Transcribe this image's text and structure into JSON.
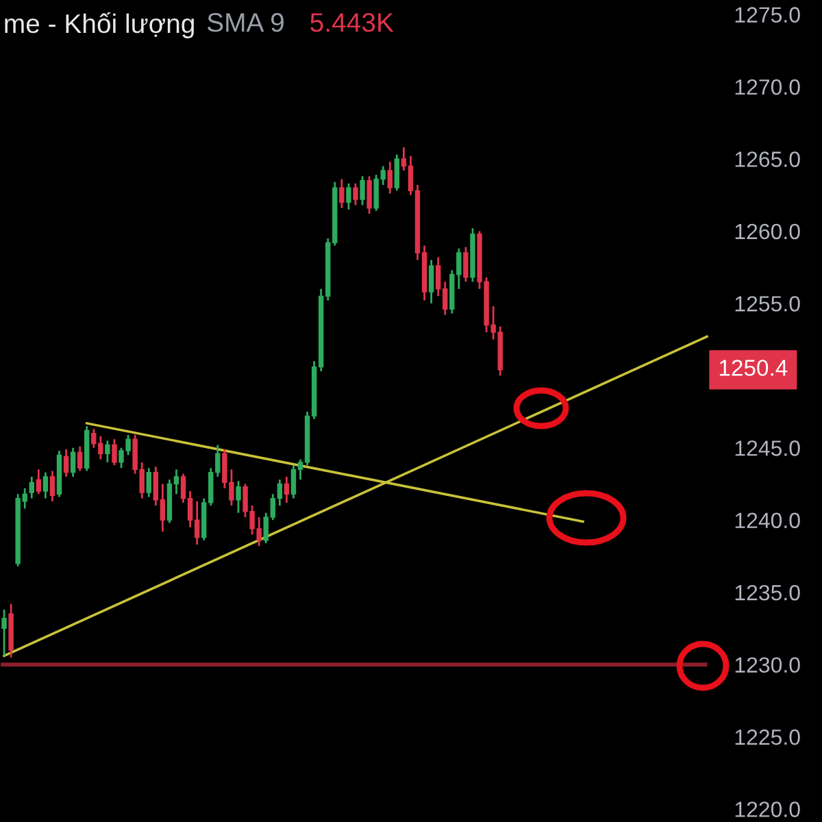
{
  "chart_data": {
    "type": "candlestick",
    "title": "me - Khối lượng",
    "subtitle": "SMA 9",
    "annotations": [
      "5.443K",
      "1250.4"
    ],
    "categories": [
      null,
      null,
      null,
      null,
      null,
      null,
      null,
      null,
      null,
      null,
      null,
      null,
      null,
      null,
      null,
      null,
      null,
      null,
      null,
      null,
      null,
      null,
      null,
      null,
      null,
      null,
      null,
      null,
      null,
      null,
      null,
      null,
      null,
      null,
      null,
      null,
      null,
      null,
      null,
      null,
      null,
      null,
      null,
      null,
      null,
      null,
      null,
      null,
      null,
      null,
      null,
      null,
      null,
      null,
      null,
      null,
      null,
      null,
      null,
      null,
      null,
      null,
      null,
      null,
      null,
      null,
      null,
      null,
      null,
      null,
      null,
      null,
      null,
      null,
      null,
      null,
      null,
      null,
      null,
      null,
      null,
      null,
      null,
      null,
      null,
      null,
      null,
      null,
      null,
      null,
      null,
      null,
      null,
      null,
      null,
      null,
      null,
      null,
      null,
      null,
      null,
      null,
      null
    ],
    "ohlc": [
      [
        1232.5,
        1233.8,
        1230.6,
        1233.2
      ],
      [
        1233.5,
        1234.2,
        1230.5,
        1231.0
      ],
      [
        1237.0,
        1241.8,
        1236.8,
        1241.5
      ],
      [
        1241.3,
        1242.2,
        1240.8,
        1241.8
      ],
      [
        1241.9,
        1243.0,
        1241.5,
        1242.6
      ],
      [
        1242.8,
        1243.5,
        1241.8,
        1242.0
      ],
      [
        1242.0,
        1243.3,
        1241.5,
        1243.0
      ],
      [
        1243.0,
        1243.4,
        1241.3,
        1241.7
      ],
      [
        1241.8,
        1244.8,
        1241.6,
        1244.5
      ],
      [
        1244.4,
        1244.9,
        1243.0,
        1243.3
      ],
      [
        1243.3,
        1245.0,
        1243.0,
        1244.7
      ],
      [
        1244.7,
        1245.1,
        1243.4,
        1243.6
      ],
      [
        1243.6,
        1246.5,
        1243.4,
        1246.2
      ],
      [
        1246.0,
        1246.3,
        1245.0,
        1245.3
      ],
      [
        1245.3,
        1245.8,
        1244.2,
        1244.6
      ],
      [
        1244.6,
        1245.5,
        1244.0,
        1245.2
      ],
      [
        1245.2,
        1245.6,
        1243.8,
        1244.0
      ],
      [
        1244.0,
        1245.0,
        1243.6,
        1244.8
      ],
      [
        1244.8,
        1245.9,
        1244.5,
        1245.6
      ],
      [
        1245.6,
        1245.9,
        1243.2,
        1243.5
      ],
      [
        1243.5,
        1244.0,
        1241.5,
        1241.9
      ],
      [
        1241.9,
        1243.6,
        1241.6,
        1243.3
      ],
      [
        1243.3,
        1243.7,
        1241.0,
        1241.4
      ],
      [
        1241.4,
        1242.5,
        1239.2,
        1240.0
      ],
      [
        1240.0,
        1242.8,
        1239.8,
        1242.5
      ],
      [
        1242.5,
        1243.5,
        1241.8,
        1243.0
      ],
      [
        1243.0,
        1243.2,
        1241.2,
        1241.5
      ],
      [
        1241.5,
        1242.0,
        1239.5,
        1240.0
      ],
      [
        1240.0,
        1241.3,
        1238.3,
        1238.8
      ],
      [
        1238.8,
        1241.5,
        1238.6,
        1241.2
      ],
      [
        1241.2,
        1243.6,
        1241.0,
        1243.3
      ],
      [
        1243.3,
        1245.2,
        1243.0,
        1244.6
      ],
      [
        1244.6,
        1244.9,
        1242.2,
        1242.6
      ],
      [
        1242.6,
        1243.5,
        1241.0,
        1241.4
      ],
      [
        1241.4,
        1242.7,
        1240.5,
        1242.3
      ],
      [
        1242.3,
        1242.5,
        1240.2,
        1240.6
      ],
      [
        1240.6,
        1241.0,
        1239.0,
        1239.4
      ],
      [
        1239.4,
        1240.2,
        1238.2,
        1238.6
      ],
      [
        1238.6,
        1240.5,
        1238.4,
        1240.2
      ],
      [
        1240.2,
        1241.8,
        1240.0,
        1241.5
      ],
      [
        1241.5,
        1242.8,
        1241.0,
        1242.5
      ],
      [
        1242.5,
        1243.0,
        1241.2,
        1241.8
      ],
      [
        1241.8,
        1243.8,
        1241.5,
        1243.5
      ],
      [
        1243.5,
        1244.2,
        1242.8,
        1244.0
      ],
      [
        1244.0,
        1247.5,
        1243.8,
        1247.2
      ],
      [
        1247.2,
        1251.0,
        1247.0,
        1250.6
      ],
      [
        1250.6,
        1256.0,
        1250.3,
        1255.5
      ],
      [
        1255.5,
        1259.5,
        1255.2,
        1259.2
      ],
      [
        1259.2,
        1263.4,
        1259.0,
        1263.0
      ],
      [
        1263.0,
        1263.6,
        1261.6,
        1262.0
      ],
      [
        1262.0,
        1263.3,
        1261.5,
        1263.0
      ],
      [
        1263.0,
        1263.3,
        1261.8,
        1262.2
      ],
      [
        1262.2,
        1263.8,
        1261.8,
        1263.5
      ],
      [
        1263.5,
        1263.8,
        1261.2,
        1261.6
      ],
      [
        1261.6,
        1263.9,
        1261.4,
        1263.6
      ],
      [
        1263.6,
        1264.5,
        1263.2,
        1264.2
      ],
      [
        1264.2,
        1264.8,
        1262.6,
        1263.0
      ],
      [
        1263.0,
        1265.3,
        1262.8,
        1265.0
      ],
      [
        1265.0,
        1265.8,
        1264.2,
        1264.5
      ],
      [
        1264.5,
        1265.2,
        1262.5,
        1262.8
      ],
      [
        1262.8,
        1263.2,
        1258.0,
        1258.5
      ],
      [
        1258.5,
        1259.0,
        1255.2,
        1255.8
      ],
      [
        1255.8,
        1258.0,
        1255.0,
        1257.6
      ],
      [
        1257.6,
        1258.2,
        1255.5,
        1256.0
      ],
      [
        1256.0,
        1256.5,
        1254.2,
        1254.6
      ],
      [
        1254.6,
        1257.3,
        1254.3,
        1257.0
      ],
      [
        1257.0,
        1258.8,
        1256.0,
        1258.5
      ],
      [
        1258.5,
        1258.9,
        1256.5,
        1256.8
      ],
      [
        1256.8,
        1260.2,
        1256.5,
        1259.8
      ],
      [
        1259.8,
        1260.0,
        1256.0,
        1256.5
      ],
      [
        1256.5,
        1256.8,
        1253.0,
        1253.5
      ],
      [
        1253.5,
        1254.8,
        1252.5,
        1253.0
      ],
      [
        1253.0,
        1253.4,
        1250.0,
        1250.4
      ],
      null,
      null,
      null,
      null,
      null,
      null,
      null,
      null,
      null,
      null,
      null,
      null,
      null,
      null,
      null,
      null,
      null,
      null,
      null,
      null,
      null,
      null,
      null,
      null,
      null,
      null,
      null,
      null,
      null,
      null
    ],
    "colors": [
      "#2eab5e",
      "#e0344b",
      "#2eab5e",
      "#2eab5e",
      "#2eab5e",
      "#e0344b",
      "#2eab5e",
      "#e0344b",
      "#2eab5e",
      "#e0344b",
      "#2eab5e",
      "#e0344b",
      "#2eab5e",
      "#e0344b",
      "#e0344b",
      "#2eab5e",
      "#e0344b",
      "#2eab5e",
      "#2eab5e",
      "#e0344b",
      "#e0344b",
      "#2eab5e",
      "#e0344b",
      "#e0344b",
      "#2eab5e",
      "#2eab5e",
      "#e0344b",
      "#e0344b",
      "#e0344b",
      "#2eab5e",
      "#2eab5e",
      "#2eab5e",
      "#e0344b",
      "#e0344b",
      "#2eab5e",
      "#e0344b",
      "#e0344b",
      "#e0344b",
      "#2eab5e",
      "#2eab5e",
      "#2eab5e",
      "#e0344b",
      "#2eab5e",
      "#2eab5e",
      "#2eab5e",
      "#2eab5e",
      "#2eab5e",
      "#2eab5e",
      "#2eab5e",
      "#e0344b",
      "#2eab5e",
      "#e0344b",
      "#2eab5e",
      "#e0344b",
      "#2eab5e",
      "#2eab5e",
      "#e0344b",
      "#2eab5e",
      "#e0344b",
      "#e0344b",
      "#e0344b",
      "#e0344b",
      "#2eab5e",
      "#e0344b",
      "#e0344b",
      "#2eab5e",
      "#2eab5e",
      "#e0344b",
      "#2eab5e",
      "#e0344b",
      "#e0344b",
      "#e0344b",
      "#e0344b",
      null,
      null,
      null,
      null,
      null,
      null,
      null,
      null,
      null,
      null,
      null,
      null,
      null,
      null,
      null,
      null,
      null,
      null,
      null,
      null,
      null,
      null,
      null,
      null,
      null,
      null,
      null,
      null,
      null,
      null
    ],
    "series": [
      {
        "type": "line",
        "color": "#c9c23a",
        "values": [
          1230.6,
          null,
          null,
          null,
          null,
          null,
          null,
          null,
          null,
          null,
          null,
          null,
          null,
          null,
          null,
          null,
          null,
          null,
          null,
          null,
          null,
          null,
          null,
          null,
          null,
          null,
          null,
          null,
          null,
          null,
          null,
          null,
          null,
          null,
          null,
          null,
          null,
          null,
          null,
          null,
          null,
          null,
          null,
          null,
          null,
          null,
          null,
          null,
          null,
          null,
          null,
          null,
          null,
          null,
          null,
          null,
          null,
          null,
          null,
          null,
          null,
          null,
          null,
          null,
          null,
          null,
          null,
          null,
          null,
          null,
          null,
          null,
          null,
          null,
          null,
          null,
          null,
          null,
          null,
          null,
          null,
          null,
          null,
          null,
          null,
          null,
          null,
          null,
          null,
          null,
          null,
          null,
          null,
          null,
          null,
          null,
          null,
          null,
          null,
          null,
          null,
          null,
          1252.7
        ]
      },
      {
        "type": "line",
        "color": "#c9c23a",
        "values": [
          null,
          null,
          null,
          null,
          null,
          null,
          null,
          null,
          null,
          null,
          null,
          null,
          1246.7,
          null,
          null,
          null,
          null,
          null,
          null,
          null,
          null,
          null,
          null,
          null,
          null,
          null,
          null,
          null,
          null,
          null,
          null,
          null,
          null,
          null,
          null,
          null,
          null,
          null,
          null,
          null,
          null,
          null,
          null,
          null,
          null,
          null,
          null,
          null,
          null,
          null,
          null,
          null,
          null,
          null,
          null,
          null,
          null,
          null,
          null,
          null,
          null,
          null,
          null,
          null,
          null,
          null,
          null,
          null,
          null,
          null,
          null,
          null,
          null,
          null,
          null,
          null,
          null,
          null,
          null,
          null,
          null,
          null,
          null,
          null,
          1239.9,
          null,
          null,
          null,
          null,
          null,
          null,
          null,
          null,
          null,
          null,
          null,
          null,
          null,
          null,
          null,
          null,
          null,
          null
        ]
      }
    ],
    "ref_lines": [
      {
        "axis": "y",
        "value": 1230,
        "color": "#8c1f2d"
      }
    ],
    "ylim": [
      1219.1,
      1276.0
    ],
    "yticks": [
      {
        "value": 1220,
        "label": "1220.0"
      },
      {
        "value": 1225,
        "label": "1225.0"
      },
      {
        "value": 1230,
        "label": "1230.0"
      },
      {
        "value": 1235,
        "label": "1235.0"
      },
      {
        "value": 1240,
        "label": "1240.0"
      },
      {
        "value": 1245,
        "label": "1245.0"
      },
      {
        "value": 1255,
        "label": "1255.0"
      },
      {
        "value": 1260,
        "label": "1260.0"
      },
      {
        "value": 1265,
        "label": "1265.0"
      },
      {
        "value": 1270,
        "label": "1270.0"
      },
      {
        "value": 1275,
        "label": "1275.0"
      }
    ],
    "tick_labels": "y"
  }
}
